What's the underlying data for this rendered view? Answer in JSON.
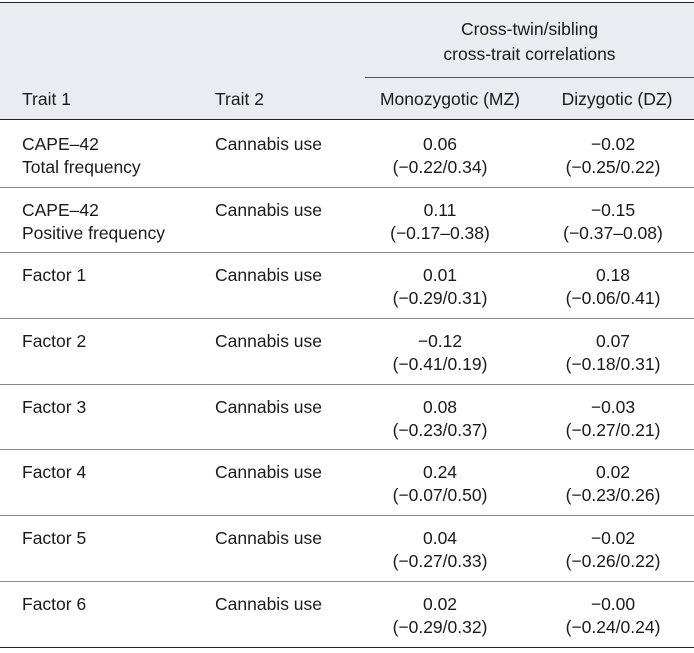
{
  "table": {
    "group_header": "Cross-twin/sibling cross-trait correlations",
    "group_header_lines": [
      "Cross-twin/sibling",
      "cross-trait correlations"
    ],
    "columns": {
      "trait1": "Trait 1",
      "trait2": "Trait 2",
      "mz": "Monozygotic (MZ)",
      "dz": "Dizygotic (DZ)"
    },
    "rows": [
      {
        "trait1": [
          "CAPE–42",
          "Total frequency"
        ],
        "trait2": "Cannabis use",
        "mz": [
          "0.06",
          "(−0.22/0.34)"
        ],
        "dz": [
          "−0.02",
          "(−0.25/0.22)"
        ]
      },
      {
        "trait1": [
          "CAPE–42",
          "Positive frequency"
        ],
        "trait2": "Cannabis use",
        "mz": [
          "0.11",
          "(−0.17–0.38)"
        ],
        "dz": [
          "−0.15",
          "(−0.37–0.08)"
        ]
      },
      {
        "trait1": [
          "Factor 1"
        ],
        "trait2": "Cannabis use",
        "mz": [
          "0.01",
          "(−0.29/0.31)"
        ],
        "dz": [
          "0.18",
          "(−0.06/0.41)"
        ]
      },
      {
        "trait1": [
          "Factor 2"
        ],
        "trait2": "Cannabis use",
        "mz": [
          "−0.12",
          "(−0.41/0.19)"
        ],
        "dz": [
          "0.07",
          "(−0.18/0.31)"
        ]
      },
      {
        "trait1": [
          "Factor 3"
        ],
        "trait2": "Cannabis use",
        "mz": [
          "0.08",
          "(−0.23/0.37)"
        ],
        "dz": [
          "−0.03",
          "(−0.27/0.21)"
        ]
      },
      {
        "trait1": [
          "Factor 4"
        ],
        "trait2": "Cannabis use",
        "mz": [
          "0.24",
          "(−0.07/0.50)"
        ],
        "dz": [
          "0.02",
          "(−0.23/0.26)"
        ]
      },
      {
        "trait1": [
          "Factor 5"
        ],
        "trait2": "Cannabis use",
        "mz": [
          "0.04",
          "(−0.27/0.33)"
        ],
        "dz": [
          "−0.02",
          "(−0.26/0.22)"
        ]
      },
      {
        "trait1": [
          "Factor 6"
        ],
        "trait2": "Cannabis use",
        "mz": [
          "0.02",
          "(−0.29/0.32)"
        ],
        "dz": [
          "−0.00",
          "(−0.24/0.24)"
        ]
      }
    ]
  },
  "colors": {
    "header_background": "#e9edf2",
    "text": "#1a1a1a",
    "rule_strong": "#222222",
    "rule_light": "#8a8a8a"
  }
}
